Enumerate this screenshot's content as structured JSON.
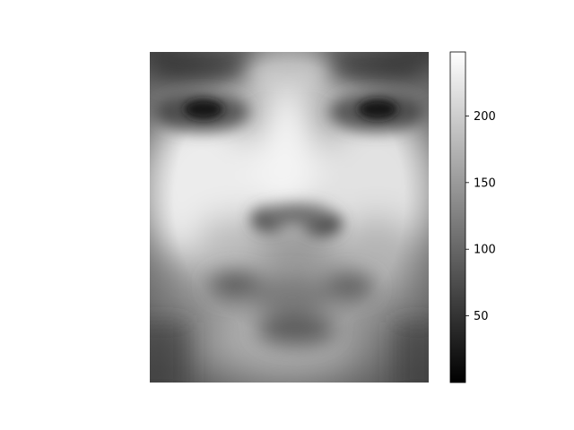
{
  "chart_data": {
    "type": "heatmap",
    "image_kind": "grayscale average face",
    "colormap": "gray",
    "grid": false,
    "colorbar": {
      "range": [
        0,
        248
      ],
      "ticks": [
        {
          "value": 50,
          "label": "50"
        },
        {
          "value": 100,
          "label": "100"
        },
        {
          "value": 150,
          "label": "150"
        },
        {
          "value": 200,
          "label": "200"
        }
      ],
      "placement": "right"
    }
  }
}
